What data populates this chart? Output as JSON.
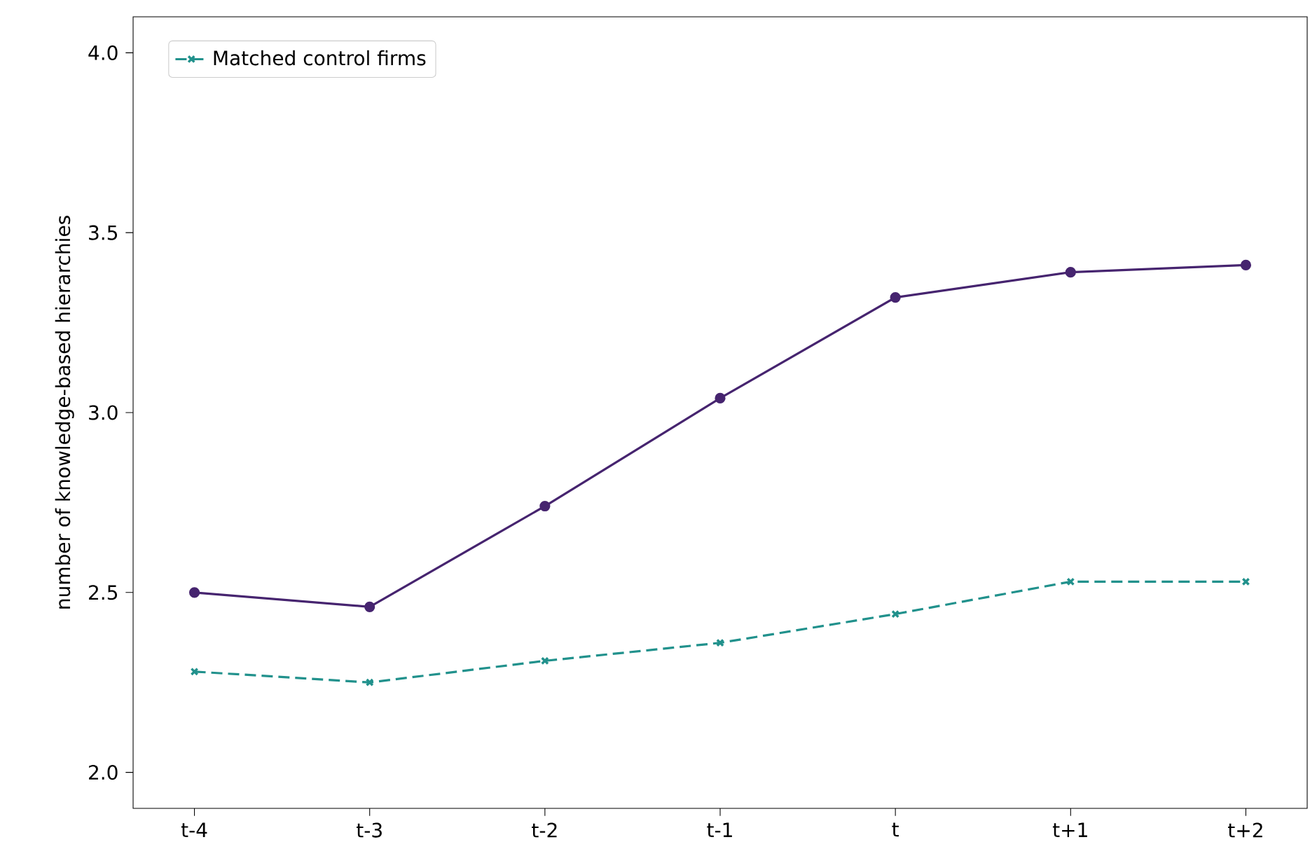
{
  "chart_data": {
    "type": "line",
    "ylabel": "number of knowledge-based hierarchies",
    "categories": [
      "t-4",
      "t-3",
      "t-2",
      "t-1",
      "t",
      "t+1",
      "t+2"
    ],
    "series": [
      {
        "color": "#46246f",
        "values": [
          2.5,
          2.46,
          2.74,
          3.04,
          3.32,
          3.39,
          3.41
        ],
        "marker": "circle",
        "line_style": "solid"
      },
      {
        "name": "Matched control firms",
        "color": "#21918c",
        "values": [
          2.28,
          2.25,
          2.31,
          2.36,
          2.44,
          2.53,
          2.53
        ],
        "marker": "cross",
        "line_style": "dashed"
      }
    ],
    "ylim": [
      1.9,
      4.1
    ],
    "yticks": [
      {
        "value": 2,
        "label": "2.0"
      },
      2.5,
      {
        "value": 3,
        "label": "3.0"
      },
      3.5,
      {
        "value": 4,
        "label": "4.0"
      }
    ],
    "grid": false,
    "legend": "top left"
  }
}
